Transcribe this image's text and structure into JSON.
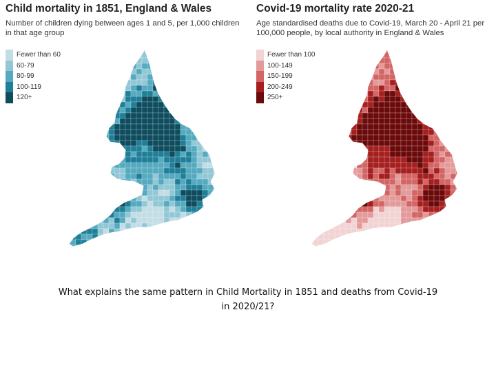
{
  "left_map": {
    "title": "Child mortality in 1851, England & Wales",
    "subtitle": "Number of children dying between ages 1 and 5, per 1,000 children in that age group",
    "legend": [
      {
        "label": "Fewer than 60",
        "color": "#c3dde6"
      },
      {
        "label": "60-79",
        "color": "#92c8d6"
      },
      {
        "label": "80-99",
        "color": "#55aabf"
      },
      {
        "label": "100-119",
        "color": "#1f7f98"
      },
      {
        "label": "120+",
        "color": "#0e4c5e"
      }
    ]
  },
  "right_map": {
    "title": "Covid-19 mortality rate 2020-21",
    "subtitle": "Age standardised deaths due to Covid-19, March 20 - April 21 per 100,000 people, by local authority in England & Wales",
    "legend": [
      {
        "label": "Fewer than 100",
        "color": "#f2d3d3"
      },
      {
        "label": "100-149",
        "color": "#e39a9a"
      },
      {
        "label": "150-199",
        "color": "#d46565"
      },
      {
        "label": "200-249",
        "color": "#a61f1f"
      },
      {
        "label": "250+",
        "color": "#6b0a0a"
      }
    ]
  },
  "question": "What explains the same pattern in Child Mortality in 1851 and deaths from Covid-19 in 2020/21?"
}
